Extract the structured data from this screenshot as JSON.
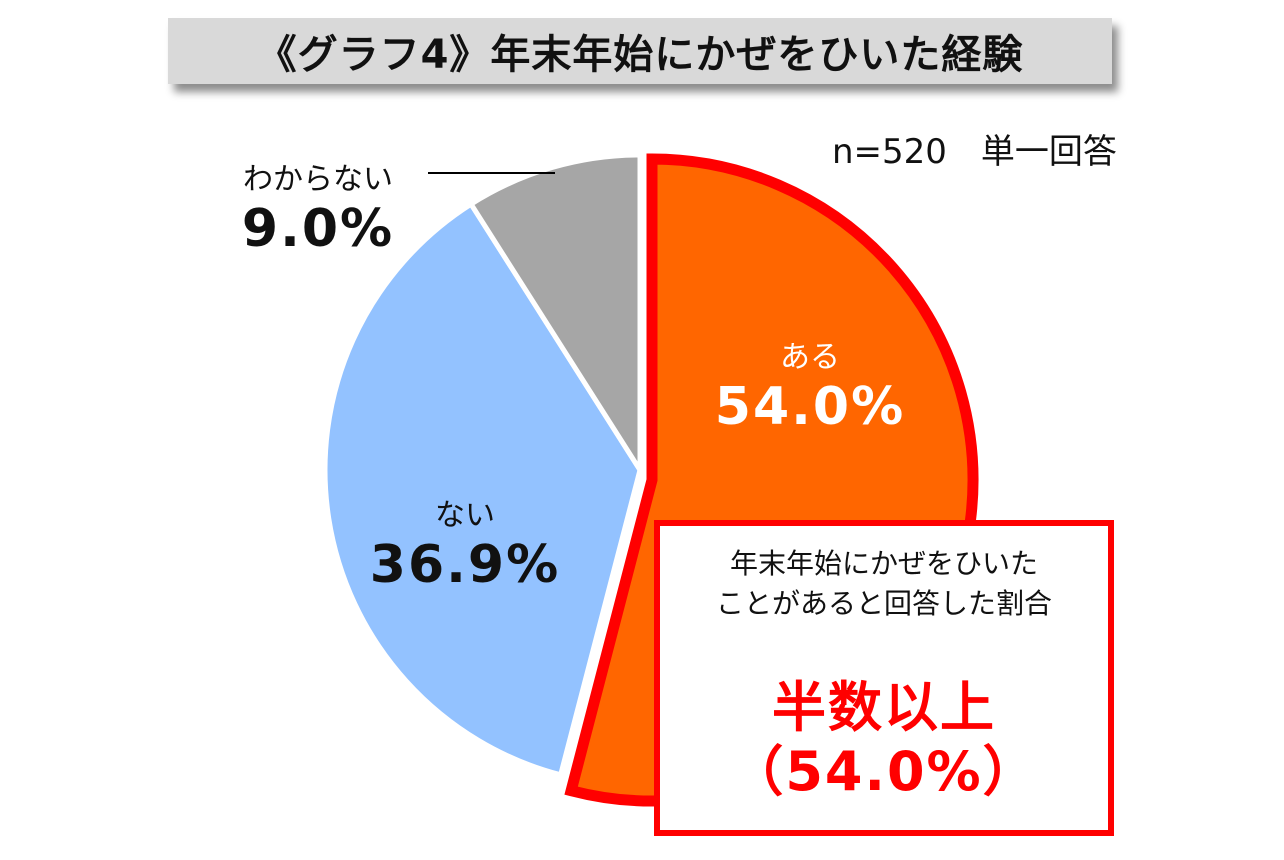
{
  "title": "《グラフ4》年末年始にかぜをひいた経験",
  "sample_note": "n=520　単一回答",
  "colors": {
    "aru": "#ff6600",
    "nai": "#93c2ff",
    "wakaranai": "#a6a6a6",
    "highlight": "#ff0000",
    "title_bg": "#d9d9d9"
  },
  "chart_data": {
    "type": "pie",
    "title": "《グラフ4》年末年始にかぜをひいた経験",
    "categories": [
      "ある",
      "ない",
      "わからない"
    ],
    "values": [
      54.0,
      36.9,
      9.0
    ],
    "value_labels": [
      "54.0%",
      "36.9%",
      "9.0%"
    ],
    "start": "12 o'clock, clockwise",
    "highlighted": "ある"
  },
  "callout": {
    "description": "年末年始にかぜをひいた\nことがあると回答した割合",
    "headline": "半数以上",
    "value": "（54.0%）"
  }
}
